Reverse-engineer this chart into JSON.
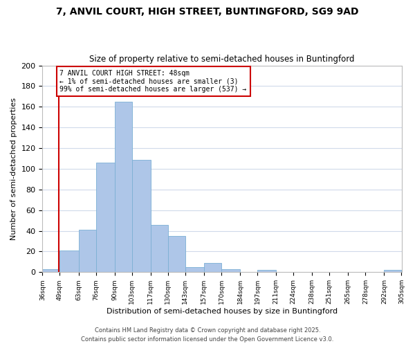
{
  "title": "7, ANVIL COURT, HIGH STREET, BUNTINGFORD, SG9 9AD",
  "subtitle": "Size of property relative to semi-detached houses in Buntingford",
  "xlabel": "Distribution of semi-detached houses by size in Buntingford",
  "ylabel": "Number of semi-detached properties",
  "bar_color": "#aec6e8",
  "bar_edge_color": "#7bafd4",
  "background_color": "#ffffff",
  "grid_color": "#d0daea",
  "annotation_box_edge": "#cc0000",
  "annotation_line_color": "#cc0000",
  "annotation_line1": "7 ANVIL COURT HIGH STREET: 48sqm",
  "annotation_line2": "← 1% of semi-detached houses are smaller (3)",
  "annotation_line3": "99% of semi-detached houses are larger (537) →",
  "property_line_x": 48,
  "footer_line1": "Contains HM Land Registry data © Crown copyright and database right 2025.",
  "footer_line2": "Contains public sector information licensed under the Open Government Licence v3.0.",
  "bin_edges": [
    36,
    49,
    63,
    76,
    90,
    103,
    117,
    130,
    143,
    157,
    170,
    184,
    197,
    211,
    224,
    238,
    251,
    265,
    278,
    292,
    305
  ],
  "bin_counts": [
    3,
    21,
    41,
    106,
    165,
    109,
    46,
    35,
    5,
    9,
    3,
    0,
    2,
    0,
    0,
    0,
    0,
    0,
    0,
    2
  ],
  "ylim": [
    0,
    200
  ],
  "yticks": [
    0,
    20,
    40,
    60,
    80,
    100,
    120,
    140,
    160,
    180,
    200
  ]
}
